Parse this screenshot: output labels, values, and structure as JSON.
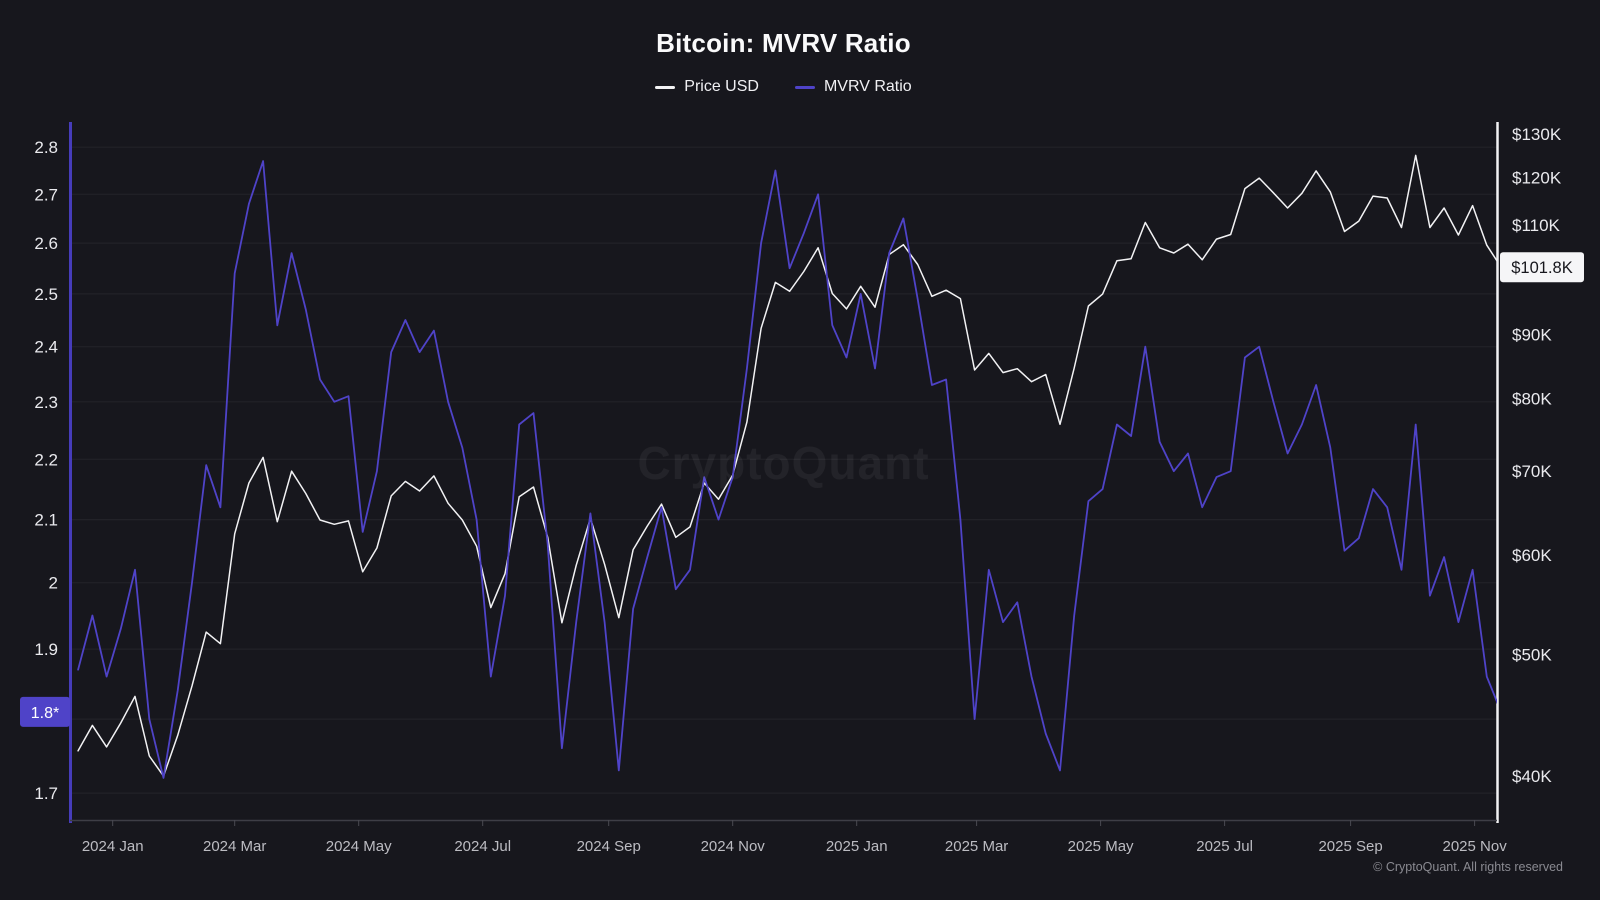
{
  "page": {
    "background": "#17171d"
  },
  "header": {
    "title": "Bitcoin: MVRV Ratio"
  },
  "watermark": "CryptoQuant",
  "footer": {
    "copyright": "© CryptoQuant. All rights reserved"
  },
  "chart_data": {
    "type": "line",
    "title": "Bitcoin: MVRV Ratio",
    "grid": {
      "color": "rgba(255,255,255,0.05)",
      "horizontal": true,
      "vertical": false
    },
    "x_axis": {
      "date_min": "2023-12-11",
      "date_max": "2025-11-12",
      "line_color": "#3e3e46",
      "tick_color": "#4a4a52",
      "label_color": "#bcbcc2",
      "ticks": [
        {
          "label": "2024 Jan",
          "date": "2024-01-01"
        },
        {
          "label": "2024 Mar",
          "date": "2024-03-01"
        },
        {
          "label": "2024 May",
          "date": "2024-05-01"
        },
        {
          "label": "2024 Jul",
          "date": "2024-07-01"
        },
        {
          "label": "2024 Sep",
          "date": "2024-09-01"
        },
        {
          "label": "2024 Nov",
          "date": "2024-11-01"
        },
        {
          "label": "2025 Jan",
          "date": "2025-01-01"
        },
        {
          "label": "2025 Mar",
          "date": "2025-03-01"
        },
        {
          "label": "2025 May",
          "date": "2025-05-01"
        },
        {
          "label": "2025 Jul",
          "date": "2025-07-01"
        },
        {
          "label": "2025 Sep",
          "date": "2025-09-01"
        },
        {
          "label": "2025 Nov",
          "date": "2025-11-01"
        }
      ]
    },
    "left_axis": {
      "title": "MVRV Ratio",
      "scale": "log",
      "domain": [
        1.665,
        2.855
      ],
      "line_color": "#463cba",
      "label_color": "#eaeaee",
      "ticks": [
        {
          "label": "2.8",
          "value": 2.8
        },
        {
          "label": "2.7",
          "value": 2.7
        },
        {
          "label": "2.6",
          "value": 2.6
        },
        {
          "label": "2.5",
          "value": 2.5
        },
        {
          "label": "2.4",
          "value": 2.4
        },
        {
          "label": "2.3",
          "value": 2.3
        },
        {
          "label": "2.2",
          "value": 2.2
        },
        {
          "label": "2.1",
          "value": 2.1
        },
        {
          "label": "2",
          "value": 2.0
        },
        {
          "label": "1.9",
          "value": 1.9
        },
        {
          "label": "1.8",
          "value": 1.8
        },
        {
          "label": "1.7",
          "value": 1.7
        }
      ]
    },
    "right_axis": {
      "title": "Price USD",
      "scale": "log",
      "domain": [
        36.9,
        132.9
      ],
      "unit": "thousand USD",
      "line_color": "#f2f2f4",
      "label_color": "#eaeaee",
      "ticks": [
        {
          "label": "$130K",
          "value": 130
        },
        {
          "label": "$120K",
          "value": 120
        },
        {
          "label": "$110K",
          "value": 110
        },
        {
          "label": "$90K",
          "value": 90
        },
        {
          "label": "$80K",
          "value": 80
        },
        {
          "label": "$70K",
          "value": 70
        },
        {
          "label": "$60K",
          "value": 60
        },
        {
          "label": "$50K",
          "value": 50
        },
        {
          "label": "$40K",
          "value": 40
        }
      ]
    },
    "series": [
      {
        "name": "Price USD",
        "axis": "right",
        "color": "#f2f2f4",
        "width": 1.5,
        "start_date": "2023-12-15",
        "interval_days": 7,
        "values": [
          41.9,
          43.9,
          42.2,
          44.1,
          46.3,
          41.5,
          40.0,
          43.1,
          47.2,
          52.1,
          51.0,
          62.4,
          68.5,
          71.8,
          63.8,
          70.0,
          67.2,
          64.0,
          63.5,
          63.9,
          58.2,
          60.8,
          66.9,
          68.7,
          67.5,
          69.4,
          66.0,
          64.0,
          61.0,
          54.5,
          58.0,
          66.8,
          68.0,
          62.0,
          53.0,
          58.9,
          64.2,
          59.0,
          53.5,
          60.6,
          63.3,
          65.9,
          62.0,
          63.2,
          68.5,
          66.5,
          69.5,
          76.6,
          91.0,
          99.0,
          97.4,
          101.0,
          105.5,
          97.0,
          94.3,
          98.3,
          94.6,
          104.2,
          106.1,
          102.3,
          96.5,
          97.6,
          96.1,
          84.3,
          86.9,
          83.9,
          84.5,
          82.5,
          83.6,
          76.3,
          84.6,
          94.8,
          96.9,
          103.0,
          103.4,
          110.5,
          105.5,
          104.5,
          106.2,
          103.2,
          107.2,
          108.1,
          117.6,
          119.9,
          116.7,
          113.5,
          116.6,
          121.5,
          116.9,
          108.7,
          110.8,
          116.0,
          115.6,
          109.5,
          125.0,
          109.5,
          113.5,
          108.0,
          114.0,
          106.0,
          101.8
        ]
      },
      {
        "name": "MVRV Ratio",
        "axis": "left",
        "color": "#4f43c8",
        "width": 1.8,
        "start_date": "2023-12-15",
        "interval_days": 7,
        "values": [
          1.87,
          1.95,
          1.86,
          1.93,
          2.02,
          1.8,
          1.72,
          1.84,
          2.0,
          2.19,
          2.12,
          2.54,
          2.68,
          2.77,
          2.44,
          2.58,
          2.47,
          2.34,
          2.3,
          2.31,
          2.08,
          2.18,
          2.39,
          2.45,
          2.39,
          2.43,
          2.3,
          2.22,
          2.1,
          1.86,
          1.98,
          2.26,
          2.28,
          2.06,
          1.76,
          1.94,
          2.11,
          1.94,
          1.73,
          1.96,
          2.04,
          2.12,
          1.99,
          2.02,
          2.17,
          2.1,
          2.17,
          2.36,
          2.6,
          2.75,
          2.55,
          2.62,
          2.7,
          2.44,
          2.38,
          2.5,
          2.36,
          2.58,
          2.65,
          2.49,
          2.33,
          2.34,
          2.1,
          1.8,
          2.02,
          1.94,
          1.97,
          1.86,
          1.78,
          1.73,
          1.95,
          2.13,
          2.15,
          2.26,
          2.24,
          2.4,
          2.23,
          2.18,
          2.21,
          2.12,
          2.17,
          2.18,
          2.38,
          2.4,
          2.3,
          2.21,
          2.26,
          2.33,
          2.22,
          2.05,
          2.07,
          2.15,
          2.12,
          2.02,
          2.26,
          1.98,
          2.04,
          1.94,
          2.02,
          1.86,
          1.81
        ]
      }
    ],
    "annotations": {
      "left_badge": {
        "label": "1.8*",
        "value": 1.81,
        "bg": "#4f43c8",
        "fg": "#ffffff"
      },
      "right_badge": {
        "label": "$101.8K",
        "value": 101.8,
        "bg": "#f5f5f7",
        "fg": "#17171d"
      }
    }
  }
}
